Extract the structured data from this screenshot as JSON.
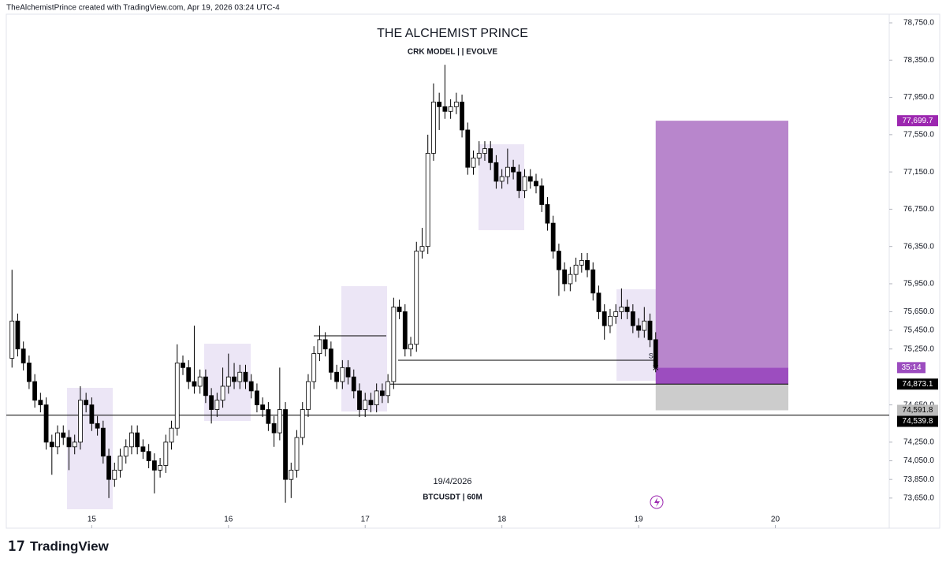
{
  "header": {
    "credit": "TheAlchemistPrince created with TradingView.com, Apr 19, 2026 03:24 UTC-4"
  },
  "branding": "TradingView",
  "chart_data": {
    "type": "candlestick",
    "title": "THE ALCHEMIST PRINCE",
    "subtitle": "CRK MODEL | | EVOLVE",
    "watermark": {
      "date": "19/4/2026",
      "symbol": "BTCUSDT | 60M"
    },
    "marker_label": "S",
    "countdown": "35:14",
    "up_color": "#ffffff",
    "down_color": "#000000",
    "border_color": "#000000",
    "xlim": [
      -1,
      154
    ],
    "ylim": [
      73327,
      78843
    ],
    "xticks": [
      {
        "value": 14,
        "label": "15"
      },
      {
        "value": 38,
        "label": "16"
      },
      {
        "value": 62,
        "label": "17"
      },
      {
        "value": 86,
        "label": "18"
      },
      {
        "value": 110,
        "label": "19"
      },
      {
        "value": 134,
        "label": "20"
      }
    ],
    "yticks": [
      {
        "value": 73650,
        "label": "73,650.0"
      },
      {
        "value": 73850,
        "label": "73,850.0"
      },
      {
        "value": 74050,
        "label": "74,050.0"
      },
      {
        "value": 74250,
        "label": "74,250.0"
      },
      {
        "value": 74650,
        "label": "74,650.0"
      },
      {
        "value": 75250,
        "label": "75,250.0"
      },
      {
        "value": 75450,
        "label": "75,450.0"
      },
      {
        "value": 75650,
        "label": "75,650.0"
      },
      {
        "value": 75950,
        "label": "75,950.0"
      },
      {
        "value": 76350,
        "label": "76,350.0"
      },
      {
        "value": 76750,
        "label": "76,750.0"
      },
      {
        "value": 77150,
        "label": "77,150.0"
      },
      {
        "value": 77550,
        "label": "77,550.0"
      },
      {
        "value": 77950,
        "label": "77,950.0"
      },
      {
        "value": 78350,
        "label": "78,350.0"
      },
      {
        "value": 78750,
        "label": "78,750.0"
      }
    ],
    "position": {
      "target": {
        "value": 77699.7,
        "label": "77,699.7"
      },
      "entry": {
        "value": 74873.1,
        "label": "74,873.1"
      },
      "stop": {
        "value": 74591.8,
        "label": "74,591.8"
      },
      "profit_color": "#b886cc",
      "loss_color": "#cccccc",
      "active_color": "#9c4dbf"
    },
    "level": {
      "value": 74539.8,
      "label": "74,539.8"
    },
    "ohlc": [
      [
        75150,
        76100,
        75050,
        75550
      ],
      [
        75550,
        75630,
        75170,
        75250
      ],
      [
        75250,
        75330,
        75020,
        75100
      ],
      [
        75100,
        75180,
        74820,
        74900
      ],
      [
        74900,
        74980,
        74620,
        74700
      ],
      [
        74700,
        74780,
        74570,
        74650
      ],
      [
        74650,
        74730,
        74170,
        74250
      ],
      [
        74250,
        74330,
        73900,
        74200
      ],
      [
        74200,
        74430,
        74120,
        74350
      ],
      [
        74350,
        74430,
        74220,
        74300
      ],
      [
        74300,
        74380,
        73950,
        74200
      ],
      [
        74200,
        74330,
        74120,
        74250
      ],
      [
        74250,
        74850,
        74170,
        74700
      ],
      [
        74700,
        74780,
        74570,
        74650
      ],
      [
        74650,
        74730,
        74370,
        74450
      ],
      [
        74450,
        74530,
        74320,
        74400
      ],
      [
        74400,
        74480,
        74020,
        74100
      ],
      [
        74100,
        74180,
        73650,
        73850
      ],
      [
        73850,
        74030,
        73770,
        73950
      ],
      [
        73950,
        74180,
        73870,
        74100
      ],
      [
        74100,
        74280,
        74020,
        74200
      ],
      [
        74200,
        74430,
        74120,
        74350
      ],
      [
        74350,
        74430,
        74120,
        74200
      ],
      [
        74200,
        74280,
        74070,
        74150
      ],
      [
        74150,
        74230,
        73970,
        74050
      ],
      [
        74050,
        74130,
        73700,
        73950
      ],
      [
        73950,
        74080,
        73870,
        74000
      ],
      [
        74000,
        74330,
        73920,
        74250
      ],
      [
        74250,
        74480,
        74170,
        74400
      ],
      [
        74400,
        75300,
        74320,
        75100
      ],
      [
        75100,
        75180,
        74970,
        75050
      ],
      [
        75050,
        75130,
        74820,
        74900
      ],
      [
        74900,
        75500,
        74770,
        74850
      ],
      [
        74850,
        75030,
        74770,
        74950
      ],
      [
        74950,
        75030,
        74670,
        74750
      ],
      [
        74750,
        74830,
        74450,
        74600
      ],
      [
        74600,
        74780,
        74520,
        74700
      ],
      [
        74700,
        75050,
        74620,
        74850
      ],
      [
        74850,
        75200,
        74770,
        74950
      ],
      [
        74950,
        75100,
        74820,
        74900
      ],
      [
        74900,
        75080,
        74820,
        75000
      ],
      [
        75000,
        75080,
        74820,
        74900
      ],
      [
        74900,
        74980,
        74720,
        74800
      ],
      [
        74800,
        74880,
        74570,
        74650
      ],
      [
        74650,
        74730,
        74520,
        74600
      ],
      [
        74600,
        74680,
        74370,
        74450
      ],
      [
        74450,
        74530,
        74200,
        74350
      ],
      [
        74350,
        75050,
        74270,
        74600
      ],
      [
        74600,
        74680,
        73600,
        73850
      ],
      [
        73850,
        74030,
        73650,
        73950
      ],
      [
        73950,
        74380,
        73870,
        74300
      ],
      [
        74300,
        74680,
        74220,
        74600
      ],
      [
        74600,
        74980,
        74520,
        74900
      ],
      [
        74900,
        75280,
        74820,
        75200
      ],
      [
        75200,
        75500,
        75120,
        75350
      ],
      [
        75350,
        75430,
        75170,
        75250
      ],
      [
        75250,
        75330,
        74920,
        75000
      ],
      [
        75000,
        75080,
        74820,
        74900
      ],
      [
        74900,
        75130,
        74820,
        75050
      ],
      [
        75050,
        75130,
        74870,
        74950
      ],
      [
        74950,
        75030,
        74720,
        74800
      ],
      [
        74800,
        74880,
        74520,
        74600
      ],
      [
        74600,
        74780,
        74520,
        74700
      ],
      [
        74700,
        74780,
        74570,
        74650
      ],
      [
        74650,
        74880,
        74570,
        74800
      ],
      [
        74800,
        74880,
        74670,
        74750
      ],
      [
        74750,
        74980,
        74670,
        74900
      ],
      [
        74900,
        75800,
        74820,
        75700
      ],
      [
        75700,
        75780,
        75570,
        75650
      ],
      [
        75650,
        75730,
        75170,
        75250
      ],
      [
        75250,
        75380,
        75170,
        75300
      ],
      [
        75300,
        76400,
        75220,
        76300
      ],
      [
        76300,
        76550,
        76220,
        76350
      ],
      [
        76350,
        77550,
        76270,
        77350
      ],
      [
        77350,
        78100,
        77270,
        77900
      ],
      [
        77900,
        78000,
        77600,
        77850
      ],
      [
        77850,
        78300,
        77720,
        77800
      ],
      [
        77800,
        77930,
        77720,
        77850
      ],
      [
        77850,
        78000,
        77770,
        77900
      ],
      [
        77900,
        77980,
        77520,
        77600
      ],
      [
        77600,
        77680,
        77120,
        77200
      ],
      [
        77200,
        77380,
        77120,
        77300
      ],
      [
        77300,
        77480,
        77220,
        77350
      ],
      [
        77350,
        77480,
        77270,
        77400
      ],
      [
        77400,
        77480,
        77170,
        77250
      ],
      [
        77250,
        77330,
        76970,
        77050
      ],
      [
        77050,
        77180,
        76970,
        77100
      ],
      [
        77100,
        77400,
        77020,
        77200
      ],
      [
        77200,
        77280,
        77070,
        77150
      ],
      [
        77150,
        77230,
        76870,
        76950
      ],
      [
        76950,
        77180,
        76870,
        77100
      ],
      [
        77100,
        77180,
        76970,
        77050
      ],
      [
        77050,
        77130,
        76920,
        77000
      ],
      [
        77000,
        77080,
        76720,
        76800
      ],
      [
        76800,
        76880,
        76520,
        76600
      ],
      [
        76600,
        76680,
        76220,
        76300
      ],
      [
        76300,
        76380,
        75820,
        76100
      ],
      [
        76100,
        76180,
        75870,
        75950
      ],
      [
        75950,
        76130,
        75870,
        76050
      ],
      [
        76050,
        76230,
        75970,
        76150
      ],
      [
        76150,
        76280,
        76070,
        76200
      ],
      [
        76200,
        76280,
        76020,
        76100
      ],
      [
        76100,
        76180,
        75770,
        75850
      ],
      [
        75850,
        75930,
        75570,
        75650
      ],
      [
        75650,
        75730,
        75350,
        75500
      ],
      [
        75500,
        75680,
        75420,
        75600
      ],
      [
        75600,
        75730,
        75520,
        75650
      ],
      [
        75650,
        75900,
        75570,
        75700
      ],
      [
        75700,
        75780,
        75570,
        75650
      ],
      [
        75650,
        75730,
        75420,
        75500
      ],
      [
        75500,
        75580,
        75370,
        75450
      ],
      [
        75450,
        75700,
        75370,
        75550
      ],
      [
        75550,
        75630,
        75270,
        75350
      ],
      [
        75350,
        75430,
        75000,
        75050
      ]
    ]
  }
}
